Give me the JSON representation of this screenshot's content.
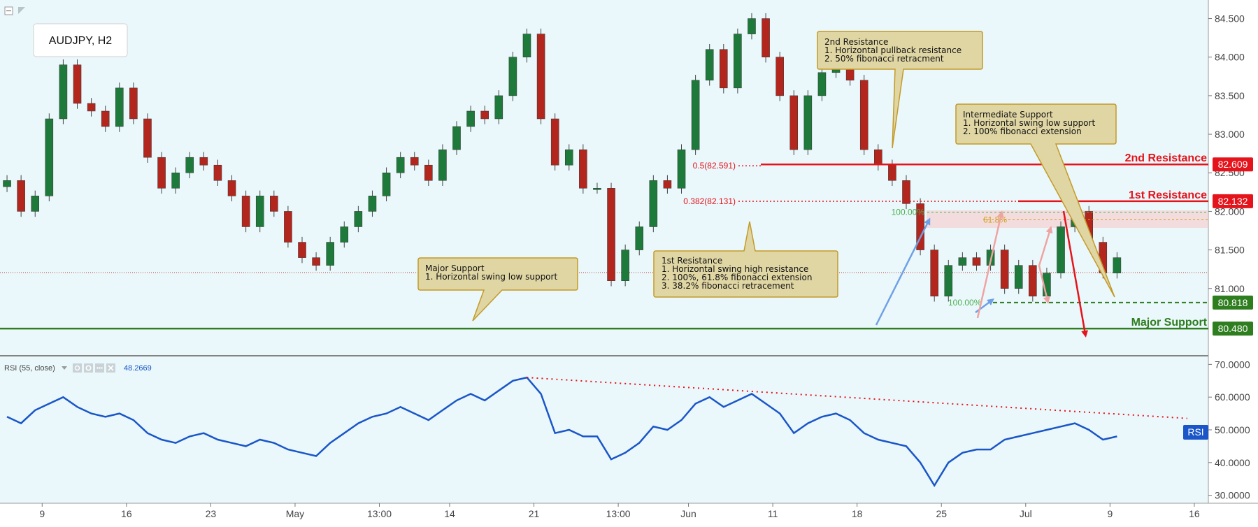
{
  "symbol_label": "AUDJPY, H2",
  "colors": {
    "background": "#eaf8fb",
    "candle_up": "#1e7a3a",
    "candle_down": "#b3261e",
    "resistance": "#e5131b",
    "support": "#2e7d1f",
    "rsi_line": "#1a56c8",
    "callout_fill": "#e0d6a4",
    "callout_stroke": "#c39a28",
    "fib_green": "#4caf50",
    "fib_orange": "#d4a017"
  },
  "levels": {
    "second_resistance": {
      "label": "2nd Resistance",
      "price_tag": "82.609",
      "value": 82.609
    },
    "first_resistance": {
      "label": "1st Resistance",
      "price_tag": "82.132",
      "value": 82.132
    },
    "intermediate_support": {
      "price_tag": "80.818",
      "value": 80.818
    },
    "major_support": {
      "label": "Major Support",
      "price_tag": "80.480",
      "value": 80.48
    },
    "fib_05": {
      "label": "0.5(82.591)",
      "value": 82.591
    },
    "fib_0382": {
      "label": "0.382(82.131)",
      "value": 82.131
    },
    "fib_100_top": {
      "label": "100.00%",
      "value": 81.99
    },
    "fib_618": {
      "label": "61.8%",
      "value": 81.89
    },
    "fib_100_bottom": {
      "label": "100.00%",
      "value": 80.818
    }
  },
  "callouts": {
    "second_resistance": {
      "title": "2nd Resistance",
      "lines": [
        "1. Horizontal pullback resistance",
        "2. 50% fibonacci retracment"
      ]
    },
    "intermediate_support": {
      "title": "Intermediate Support",
      "lines": [
        "1. Horizontal swing low support",
        "2. 100% fibonacci extension"
      ]
    },
    "first_resistance": {
      "title": "1st Resistance",
      "lines": [
        "1. Horizontal swing high resistance",
        "2. 100%, 61.8% fibonacci extension",
        "3. 38.2% fibonacci retracement"
      ]
    },
    "major_support": {
      "title": "Major Support",
      "lines": [
        "1. Horizontal swing low support"
      ]
    }
  },
  "rsi": {
    "label": "RSI (55, close)",
    "value_text": "48.2669",
    "badge": "RSI",
    "ticks": [
      "70.0000",
      "60.0000",
      "50.0000",
      "40.0000",
      "30.0000"
    ],
    "tick_values": [
      70,
      60,
      50,
      40,
      30
    ]
  },
  "chart_data": [
    {
      "type": "candlestick",
      "title": "AUDJPY, H2",
      "y_range": [
        80.3,
        84.65
      ],
      "y_ticks": [
        "84.500",
        "84.000",
        "83.500",
        "83.000",
        "82.500",
        "82.000",
        "81.500",
        "81.000"
      ],
      "y_tick_values": [
        84.5,
        84.0,
        83.5,
        83.0,
        82.5,
        82.0,
        81.5,
        81.0
      ],
      "x_ticks": [
        "9",
        "16",
        "23",
        "May",
        "13:00",
        "14",
        "21",
        "13:00",
        "Jun",
        "11",
        "18",
        "25",
        "Jul",
        "9",
        "16"
      ],
      "x_tick_positions": [
        3,
        9,
        15,
        21,
        27,
        32,
        38,
        44,
        49,
        55,
        61,
        67,
        73,
        79,
        85
      ],
      "bars_span": 86,
      "closes": [
        82.4,
        82.0,
        82.2,
        83.2,
        83.9,
        83.4,
        83.3,
        83.1,
        83.6,
        83.2,
        82.7,
        82.3,
        82.5,
        82.7,
        82.6,
        82.4,
        82.2,
        81.8,
        82.2,
        82.0,
        81.6,
        81.4,
        81.3,
        81.6,
        81.8,
        82.0,
        82.2,
        82.5,
        82.7,
        82.6,
        82.4,
        82.8,
        83.1,
        83.3,
        83.2,
        83.5,
        84.0,
        84.3,
        83.2,
        82.6,
        82.8,
        82.3,
        82.3,
        81.1,
        81.5,
        81.8,
        82.4,
        82.3,
        82.8,
        83.7,
        84.1,
        83.6,
        84.3,
        84.5,
        84.0,
        83.5,
        82.8,
        83.5,
        83.8,
        84.0,
        83.7,
        82.8,
        82.6,
        82.4,
        82.1,
        81.5,
        80.9,
        81.3,
        81.4,
        81.3,
        81.5,
        81.0,
        81.3,
        80.9,
        81.2,
        81.8,
        82.0,
        81.6,
        81.2,
        81.4
      ],
      "overlays": {
        "horizontal_levels": [
          82.609,
          82.132,
          80.818,
          80.48
        ],
        "projected_path": [
          82.132,
          80.48
        ]
      }
    },
    {
      "type": "line",
      "title": "RSI (55, close)",
      "y_range": [
        28,
        72
      ],
      "values": [
        54,
        52,
        56,
        58,
        60,
        57,
        55,
        54,
        55,
        53,
        49,
        47,
        46,
        48,
        49,
        47,
        46,
        45,
        47,
        46,
        44,
        43,
        42,
        46,
        49,
        52,
        54,
        55,
        57,
        55,
        53,
        56,
        59,
        61,
        59,
        62,
        65,
        66,
        61,
        49,
        50,
        48,
        48,
        41,
        43,
        46,
        51,
        50,
        53,
        58,
        60,
        57,
        59,
        61,
        58,
        55,
        49,
        52,
        54,
        55,
        53,
        49,
        47,
        46,
        45,
        40,
        33,
        40,
        43,
        44,
        44,
        47,
        48,
        49,
        50,
        51,
        52,
        50,
        47,
        48
      ],
      "divergence_trendline": [
        66,
        53.5
      ],
      "last_value": 48.2669
    }
  ]
}
